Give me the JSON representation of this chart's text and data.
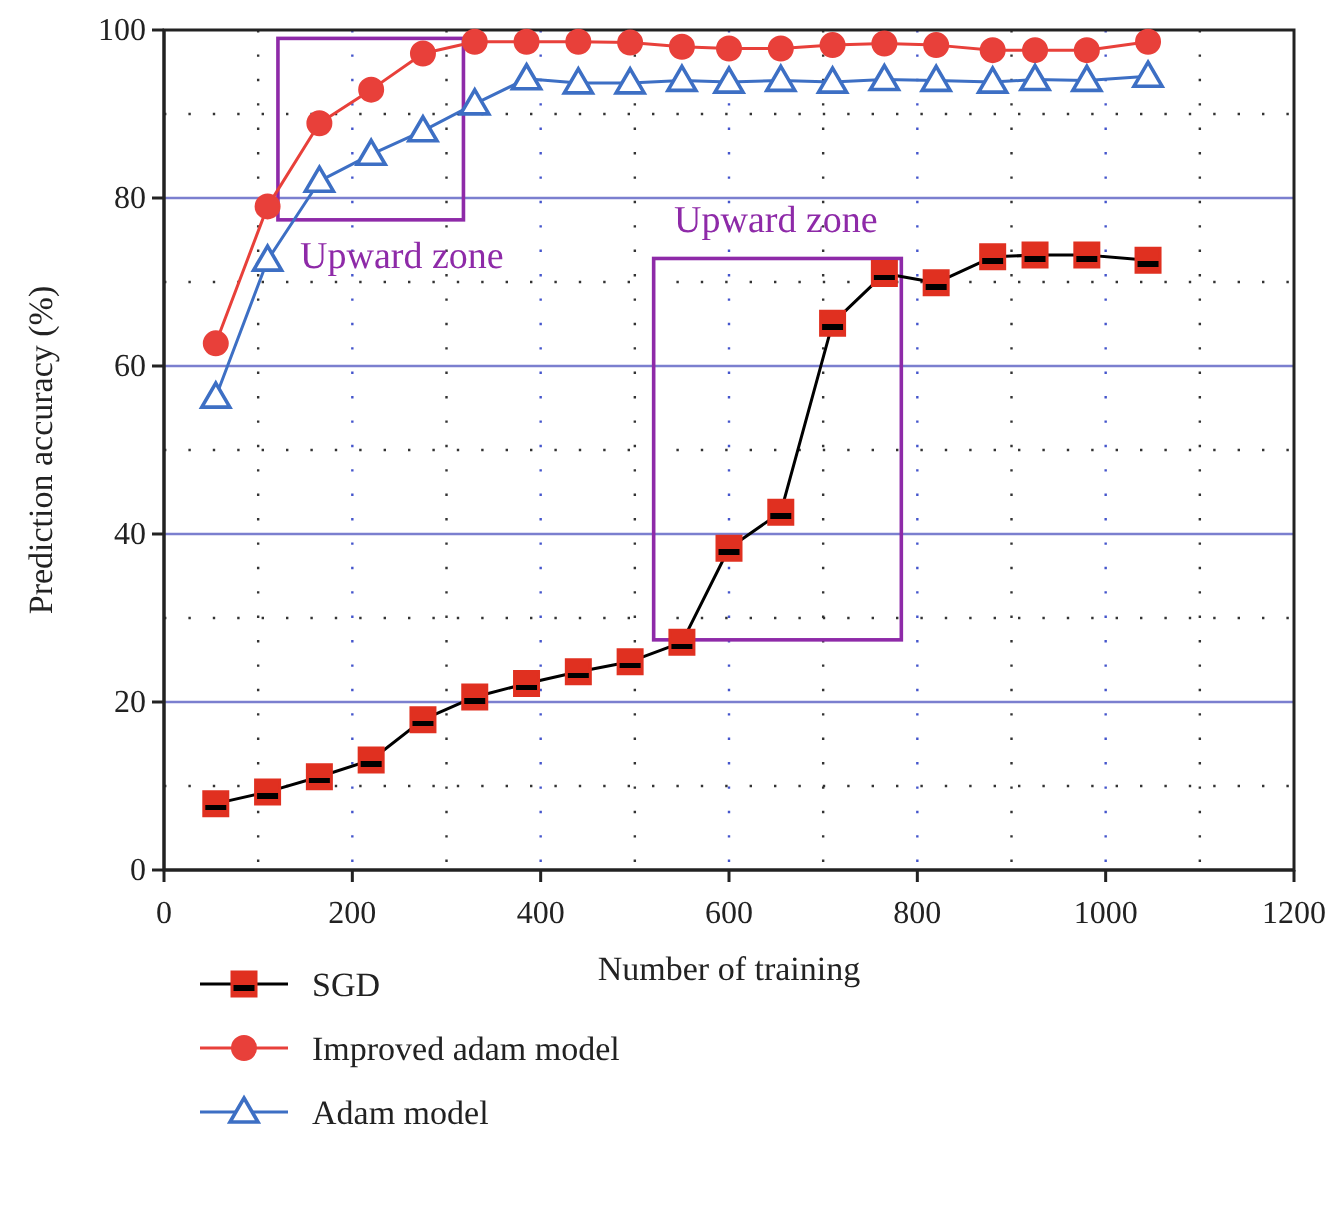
{
  "chart_data": {
    "type": "line",
    "xlabel": "Number of training",
    "ylabel": "Prediction accuracy (%)",
    "xlim": [
      0,
      1200
    ],
    "xticks": [
      0,
      200,
      400,
      600,
      800,
      1000,
      1200
    ],
    "ylim": [
      0,
      100
    ],
    "yticks": [
      0,
      20,
      40,
      60,
      80,
      100
    ],
    "grid": true,
    "legend": "bottom",
    "series": [
      {
        "name": "SGD",
        "color": "#e03020",
        "marker": "square",
        "x": [
          55,
          110,
          165,
          220,
          275,
          330,
          385,
          440,
          495,
          550,
          600,
          655,
          710,
          765,
          820,
          880,
          925,
          980,
          1045
        ],
        "values": [
          7.9,
          9.3,
          11.1,
          13.1,
          17.9,
          20.6,
          22.2,
          23.6,
          24.8,
          27.1,
          38.3,
          42.6,
          65.1,
          71.0,
          69.9,
          73.0,
          73.2,
          73.2,
          72.6
        ]
      },
      {
        "name": "Improved adam model",
        "color": "#e8403a",
        "marker": "circle",
        "x": [
          55,
          110,
          165,
          220,
          275,
          330,
          385,
          440,
          495,
          550,
          600,
          655,
          710,
          765,
          820,
          880,
          925,
          980,
          1045
        ],
        "values": [
          62.7,
          79.0,
          88.9,
          92.9,
          97.2,
          98.6,
          98.6,
          98.6,
          98.5,
          98.0,
          97.8,
          97.8,
          98.2,
          98.4,
          98.2,
          97.6,
          97.6,
          97.6,
          98.6
        ]
      },
      {
        "name": "Adam model",
        "color": "#3d6fc4",
        "marker": "triangle",
        "x": [
          55,
          110,
          165,
          220,
          275,
          330,
          385,
          440,
          495,
          550,
          600,
          655,
          710,
          765,
          820,
          880,
          925,
          980,
          1045
        ],
        "values": [
          56.3,
          72.6,
          82.0,
          85.2,
          88.0,
          91.2,
          94.2,
          93.7,
          93.7,
          94.0,
          93.8,
          94.0,
          93.8,
          94.1,
          94.0,
          93.8,
          94.1,
          94.0,
          94.5
        ]
      }
    ],
    "annotations": [
      "Upward zone",
      "Upward zone"
    ]
  }
}
